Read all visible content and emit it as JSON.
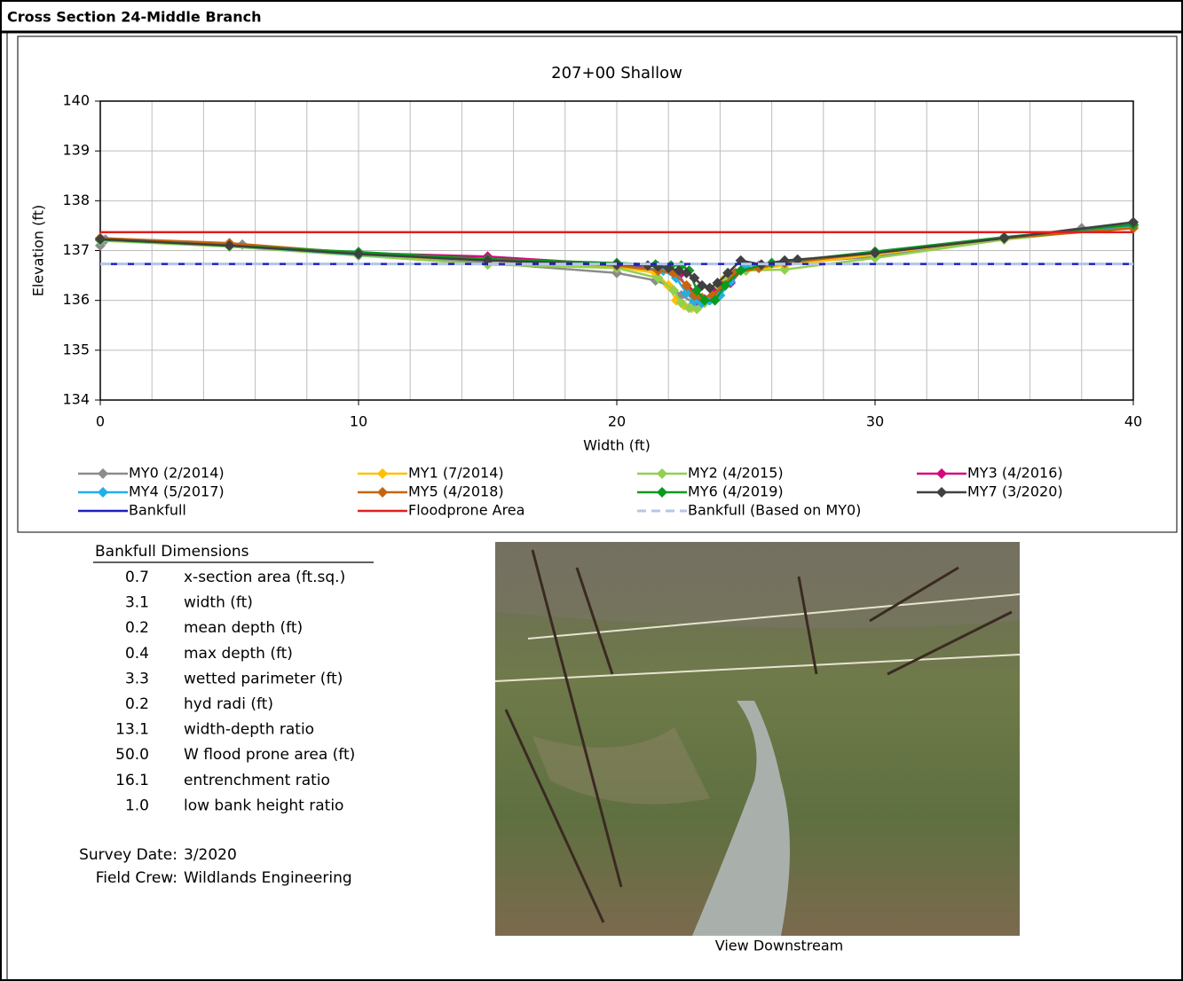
{
  "header": {
    "title": "Cross Section  24-Middle Branch"
  },
  "chart_data": {
    "type": "line",
    "title": "207+00 Shallow",
    "x_label": "Width (ft)",
    "y_label": "Elevation (ft)",
    "xlim": [
      0,
      40
    ],
    "xticks": [
      0,
      10,
      20,
      30,
      40
    ],
    "xgrid": [
      0,
      2,
      4,
      6,
      8,
      10,
      12,
      14,
      16,
      18,
      20,
      22,
      24,
      26,
      28,
      30,
      32,
      34,
      36,
      38,
      40
    ],
    "ylim": [
      134,
      140
    ],
    "yticks": [
      134,
      135,
      136,
      137,
      138,
      139,
      140
    ],
    "grid": true,
    "series": [
      {
        "name": "MY0 (2/2014)",
        "color": "#8c8c8c",
        "marker": "diamond",
        "x": [
          0,
          0.2,
          5.5,
          10,
          15,
          20,
          21.5,
          22,
          22.5,
          23,
          23.5,
          24,
          24.5,
          25.5,
          30,
          35,
          38,
          40
        ],
        "values": [
          137.1,
          137.22,
          137.12,
          136.9,
          136.75,
          136.55,
          136.4,
          136.3,
          136.1,
          135.95,
          136.0,
          136.3,
          136.55,
          136.7,
          136.88,
          137.25,
          137.45,
          137.5
        ]
      },
      {
        "name": "MY1 (7/2014)",
        "color": "#ffc000",
        "marker": "diamond",
        "x": [
          0,
          5,
          10,
          15,
          20,
          21.5,
          22,
          22.3,
          22.6,
          22.9,
          23.2,
          23.5,
          23.8,
          24.2,
          25,
          26.5,
          30,
          35,
          40
        ],
        "values": [
          137.2,
          137.1,
          136.92,
          136.8,
          136.68,
          136.55,
          136.3,
          136.0,
          135.9,
          135.85,
          135.9,
          136.0,
          136.2,
          136.45,
          136.6,
          136.7,
          136.92,
          137.25,
          137.5
        ]
      },
      {
        "name": "MY2 (4/2015)",
        "color": "#92d050",
        "marker": "diamond",
        "x": [
          0,
          5,
          10,
          15,
          20,
          21.6,
          22.2,
          22.5,
          22.8,
          23.1,
          23.4,
          23.8,
          24.3,
          25,
          26.5,
          30,
          35,
          40
        ],
        "values": [
          137.2,
          137.08,
          136.9,
          136.72,
          136.65,
          136.45,
          136.2,
          135.95,
          135.85,
          135.83,
          135.95,
          136.2,
          136.45,
          136.6,
          136.62,
          136.85,
          137.22,
          137.48
        ]
      },
      {
        "name": "MY3 (4/2016)",
        "color": "#d4087e",
        "marker": "diamond",
        "x": [
          0,
          5,
          10,
          15,
          20,
          21.8,
          22.4,
          22.8,
          23.1,
          23.4,
          23.8,
          24.4,
          25,
          26.5,
          30,
          35,
          40
        ],
        "values": [
          137.25,
          137.12,
          136.95,
          136.88,
          136.72,
          136.6,
          136.5,
          136.2,
          136.0,
          136.02,
          136.15,
          136.35,
          136.7,
          136.78,
          136.95,
          137.25,
          137.52
        ]
      },
      {
        "name": "MY4 (5/2017)",
        "color": "#1fb0e8",
        "marker": "diamond",
        "x": [
          0,
          5,
          10,
          15,
          20,
          21.8,
          22.3,
          22.7,
          23,
          23.3,
          23.6,
          24,
          24.4,
          25,
          26.5,
          30,
          35,
          40
        ],
        "values": [
          137.22,
          137.1,
          136.92,
          136.82,
          136.7,
          136.6,
          136.45,
          136.15,
          135.98,
          135.95,
          136.0,
          136.1,
          136.38,
          136.7,
          136.78,
          136.95,
          137.25,
          137.5
        ]
      },
      {
        "name": "MY5 (4/2018)",
        "color": "#c5650f",
        "marker": "diamond",
        "x": [
          0,
          5,
          10,
          15,
          20,
          21.6,
          22.2,
          22.7,
          23,
          23.3,
          23.7,
          24.1,
          24.6,
          25.5,
          26.5,
          30,
          35,
          40
        ],
        "values": [
          137.25,
          137.15,
          136.95,
          136.82,
          136.7,
          136.6,
          136.55,
          136.3,
          136.1,
          136.05,
          136.1,
          136.3,
          136.55,
          136.65,
          136.75,
          136.95,
          137.25,
          137.45
        ]
      },
      {
        "name": "MY6 (4/2019)",
        "color": "#0a9a1e",
        "marker": "diamond",
        "x": [
          0,
          5,
          10,
          15,
          20,
          21.5,
          22.1,
          22.5,
          22.8,
          23.1,
          23.4,
          23.8,
          24.2,
          24.8,
          26,
          30,
          35,
          40
        ],
        "values": [
          137.22,
          137.1,
          136.97,
          136.83,
          136.75,
          136.72,
          136.7,
          136.7,
          136.6,
          136.2,
          136.0,
          136.0,
          136.3,
          136.6,
          136.75,
          136.98,
          137.27,
          137.52
        ]
      },
      {
        "name": "MY7 (3/2020)",
        "color": "#404040",
        "marker": "diamond",
        "x": [
          0,
          5,
          10,
          15,
          20,
          21.2,
          21.6,
          22,
          22.4,
          22.7,
          23,
          23.3,
          23.6,
          23.9,
          24.3,
          24.8,
          25.6,
          26.5,
          27,
          30,
          35,
          40
        ],
        "values": [
          137.23,
          137.1,
          136.93,
          136.8,
          136.72,
          136.7,
          136.68,
          136.65,
          136.6,
          136.55,
          136.45,
          136.3,
          136.25,
          136.35,
          136.55,
          136.8,
          136.72,
          136.8,
          136.82,
          136.95,
          137.25,
          137.57
        ]
      },
      {
        "name": "Bankfull",
        "color": "#1f1fbf",
        "x": [
          0,
          40
        ],
        "values": [
          136.73,
          136.73
        ]
      },
      {
        "name": "Floodprone Area",
        "color": "#e02020",
        "x": [
          0,
          40
        ],
        "values": [
          137.37,
          137.37
        ]
      },
      {
        "name": "Bankfull (Based on MY0)",
        "color": "#b4c7e7",
        "dash": true,
        "x": [
          0,
          40
        ],
        "values": [
          136.73,
          136.73
        ]
      }
    ]
  },
  "bankfull_dimensions": {
    "title": "Bankfull Dimensions",
    "rows": [
      [
        "0.7",
        "x-section area (ft.sq.)"
      ],
      [
        "3.1",
        "width (ft)"
      ],
      [
        "0.2",
        "mean depth (ft)"
      ],
      [
        "0.4",
        "max depth (ft)"
      ],
      [
        "3.3",
        "wetted parimeter (ft)"
      ],
      [
        "0.2",
        "hyd radi (ft)"
      ],
      [
        "13.1",
        "width-depth ratio"
      ],
      [
        "50.0",
        "W flood prone area (ft)"
      ],
      [
        "16.1",
        "entrenchment ratio"
      ],
      [
        "1.0",
        "low bank height ratio"
      ]
    ]
  },
  "survey": {
    "date_label": "Survey Date:",
    "date": "3/2020",
    "crew_label": "Field Crew:",
    "crew": "Wildlands Engineering"
  },
  "photo": {
    "caption": "View Downstream"
  }
}
